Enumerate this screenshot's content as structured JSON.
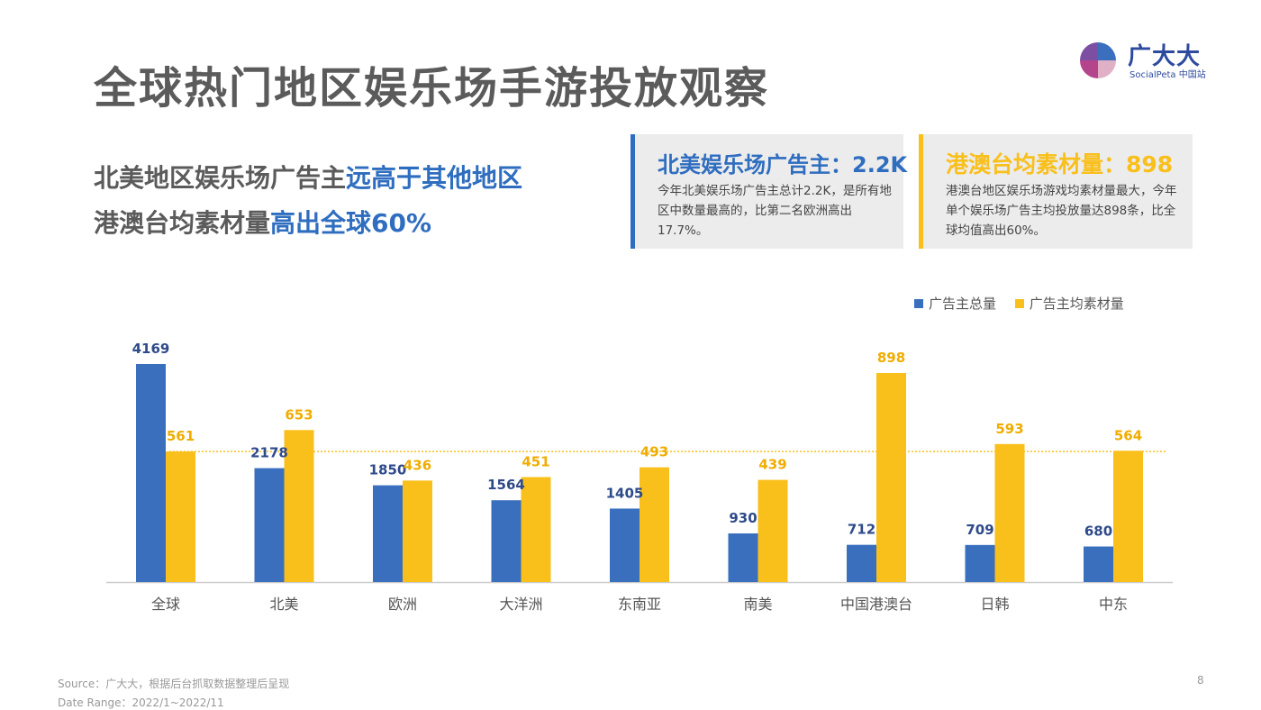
{
  "title": "全球热门地区娱乐场手游投放观察",
  "logo": {
    "name": "广大大",
    "sub": "SocialPeta 中国站"
  },
  "headline": {
    "line1_gray": "北美地区娱乐场广告主",
    "line1_blue": "远高于其他地区",
    "line2_gray": "港澳台均素材量",
    "line2_blue": "高出全球60%"
  },
  "cards": [
    {
      "title": "北美娱乐场广告主：2.2K",
      "body": "今年北美娱乐场广告主总计2.2K，是所有地区中数量最高的，比第二名欧洲高出17.7%。",
      "accent": "#2e6dbf"
    },
    {
      "title": "港澳台均素材量：898",
      "body": "港澳台地区娱乐场游戏均素材量最大，今年单个娱乐场广告主均投放量达898条，比全球均值高出60%。",
      "accent": "#f9bf1b"
    }
  ],
  "chart_data": {
    "type": "bar",
    "categories": [
      "全球",
      "北美",
      "欧洲",
      "大洋洲",
      "东南亚",
      "南美",
      "中国港澳台",
      "日韩",
      "中东"
    ],
    "series": [
      {
        "name": "广告主总量",
        "color": "#3a6fbe",
        "values": [
          4169,
          2178,
          1850,
          1564,
          1405,
          930,
          712,
          709,
          680
        ]
      },
      {
        "name": "广告主均素材量",
        "color": "#f9bf1b",
        "values": [
          561,
          653,
          436,
          451,
          493,
          439,
          898,
          593,
          564
        ]
      }
    ],
    "reference_line": {
      "value": 561,
      "series": "广告主均素材量",
      "color": "#f9bf1b",
      "style": "dotted"
    },
    "legend_position": "top-right",
    "grid": false
  },
  "footer": {
    "source": "Source：广大大，根据后台抓取数据整理后呈现",
    "date_range": "Date Range：2022/1~2022/11"
  },
  "page_number": "8"
}
